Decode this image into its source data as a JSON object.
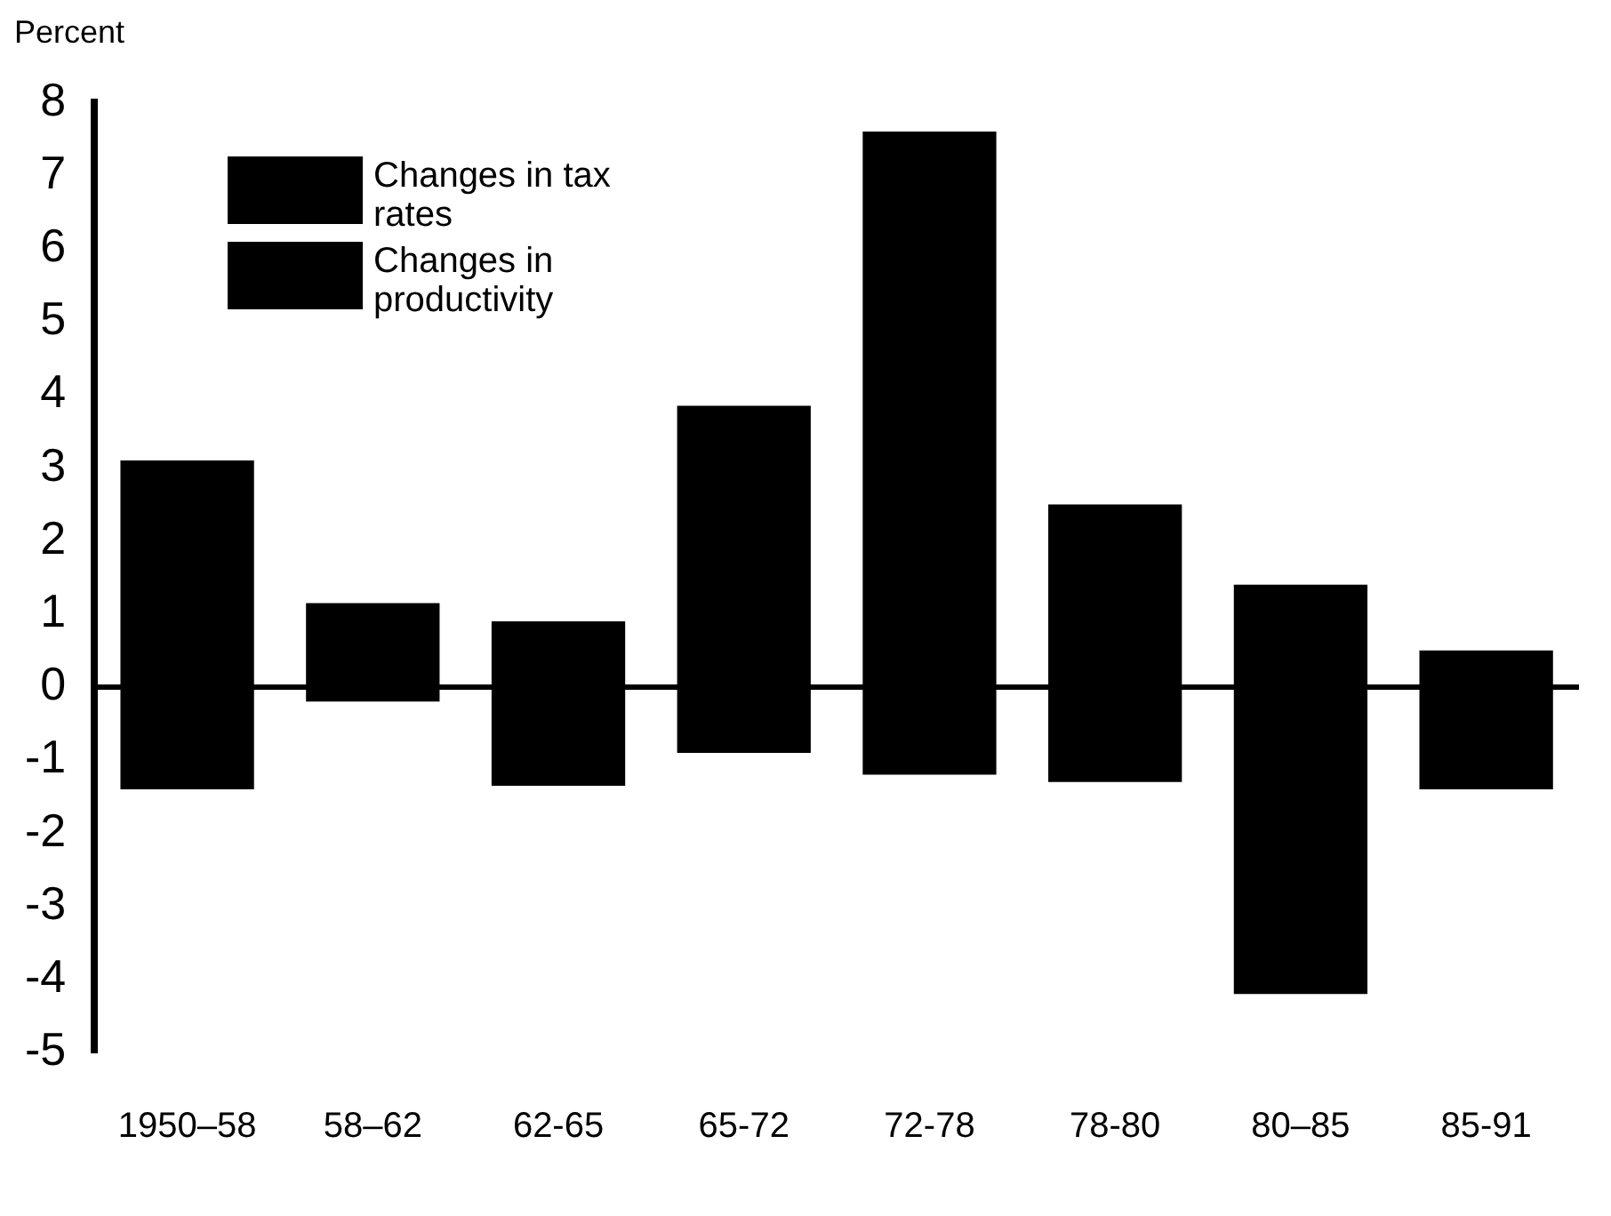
{
  "chart_data": {
    "type": "bar",
    "ylabel": "Percent",
    "categories": [
      "1950–58",
      "58–62",
      "62-65",
      "65-72",
      "72-78",
      "78-80",
      "80–85",
      "85-91"
    ],
    "series": [
      {
        "name": "Changes in tax rates",
        "color": "#000000",
        "values": [
          -1.4,
          -0.2,
          -1.35,
          -0.9,
          -1.2,
          -1.3,
          -4.2,
          -1.4
        ]
      },
      {
        "name": "Changes in productivity",
        "color": "#000000",
        "values": [
          3.1,
          1.15,
          0.9,
          3.85,
          7.6,
          2.5,
          1.4,
          0.5
        ]
      }
    ],
    "stacked": true,
    "ylim": [
      -5,
      8
    ],
    "yticks": [
      -5,
      -4,
      -3,
      -2,
      -1,
      0,
      1,
      2,
      3,
      4,
      5,
      6,
      7,
      8
    ],
    "ref_lines": [
      {
        "axis": "y",
        "value": 0
      }
    ],
    "grid": false,
    "legend": "top left"
  }
}
